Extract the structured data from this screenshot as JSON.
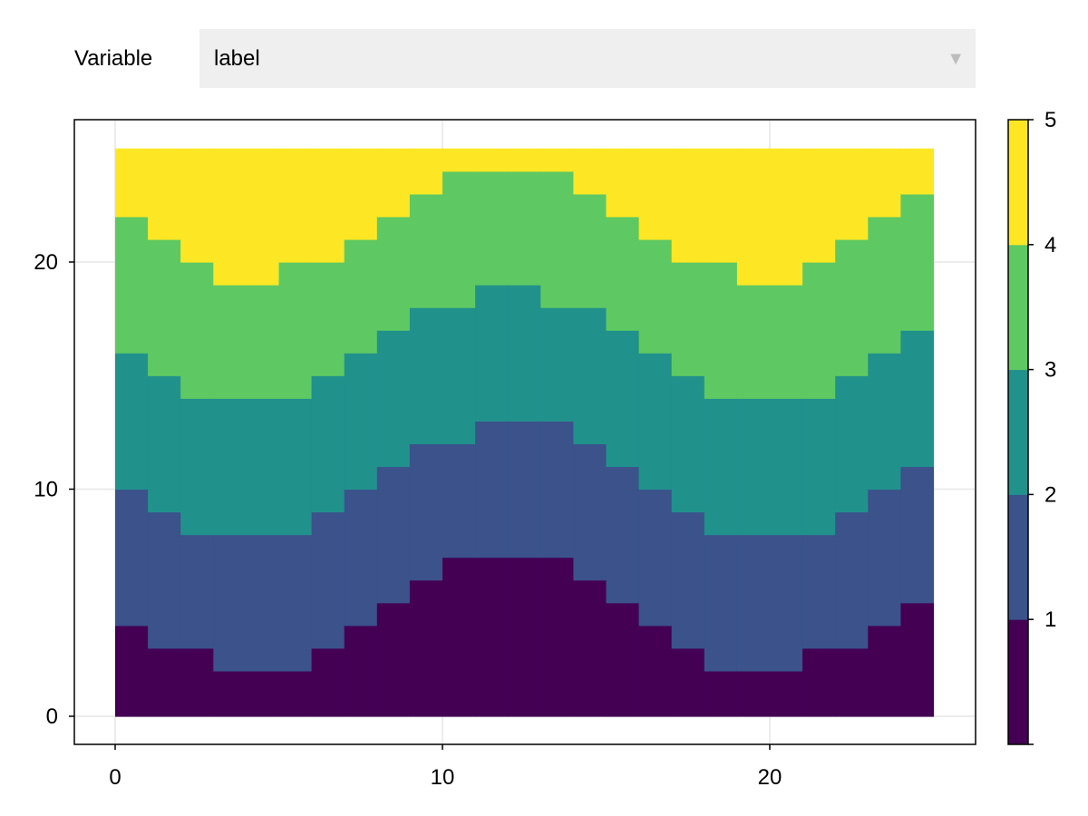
{
  "controls": {
    "variable_label": "Variable",
    "variable_selected": "label",
    "dropdown_arrow_icon": "triangle-down-icon"
  },
  "chart_data": {
    "type": "heatmap",
    "title": "",
    "xlabel": "",
    "ylabel": "",
    "xlim": [
      -1.25,
      26.25
    ],
    "ylim": [
      -1.25,
      26.25
    ],
    "x_ticks": [
      0,
      10,
      20
    ],
    "y_ticks": [
      0,
      10,
      20
    ],
    "grid": true,
    "x_edges": [
      0,
      25
    ],
    "y_edges": [
      0,
      25
    ],
    "bands_note": "each column lists upper boundary (y) of classes 1..4; class 5 band tops at 25",
    "class_colors": [
      "#440154",
      "#3b528b",
      "#21918c",
      "#5ec962",
      "#fde725"
    ],
    "columns": [
      {
        "x": [
          0,
          1
        ],
        "b1": 4,
        "b2": 10,
        "b3": 16,
        "b4": 22
      },
      {
        "x": [
          1,
          2
        ],
        "b1": 3,
        "b2": 9,
        "b3": 15,
        "b4": 21
      },
      {
        "x": [
          2,
          3
        ],
        "b1": 3,
        "b2": 8,
        "b3": 14,
        "b4": 20
      },
      {
        "x": [
          3,
          5
        ],
        "b1": 2,
        "b2": 8,
        "b3": 14,
        "b4": 19
      },
      {
        "x": [
          5,
          6
        ],
        "b1": 2,
        "b2": 8,
        "b3": 14,
        "b4": 20
      },
      {
        "x": [
          6,
          7
        ],
        "b1": 3,
        "b2": 9,
        "b3": 15,
        "b4": 20
      },
      {
        "x": [
          7,
          8
        ],
        "b1": 4,
        "b2": 10,
        "b3": 16,
        "b4": 21
      },
      {
        "x": [
          8,
          9
        ],
        "b1": 5,
        "b2": 11,
        "b3": 17,
        "b4": 22
      },
      {
        "x": [
          9,
          10
        ],
        "b1": 6,
        "b2": 12,
        "b3": 18,
        "b4": 23
      },
      {
        "x": [
          10,
          11
        ],
        "b1": 7,
        "b2": 12,
        "b3": 18,
        "b4": 24
      },
      {
        "x": [
          11,
          12
        ],
        "b1": 7,
        "b2": 13,
        "b3": 19,
        "b4": 24
      },
      {
        "x": [
          12,
          13
        ],
        "b1": 7,
        "b2": 13,
        "b3": 19,
        "b4": 24
      },
      {
        "x": [
          13,
          14
        ],
        "b1": 7,
        "b2": 13,
        "b3": 18,
        "b4": 24
      },
      {
        "x": [
          14,
          15
        ],
        "b1": 6,
        "b2": 12,
        "b3": 18,
        "b4": 23
      },
      {
        "x": [
          15,
          16
        ],
        "b1": 5,
        "b2": 11,
        "b3": 17,
        "b4": 22
      },
      {
        "x": [
          16,
          17
        ],
        "b1": 4,
        "b2": 10,
        "b3": 16,
        "b4": 21
      },
      {
        "x": [
          17,
          18
        ],
        "b1": 3,
        "b2": 9,
        "b3": 15,
        "b4": 20
      },
      {
        "x": [
          18,
          19
        ],
        "b1": 2,
        "b2": 8,
        "b3": 14,
        "b4": 20
      },
      {
        "x": [
          19,
          21
        ],
        "b1": 2,
        "b2": 8,
        "b3": 14,
        "b4": 19
      },
      {
        "x": [
          21,
          22
        ],
        "b1": 3,
        "b2": 8,
        "b3": 14,
        "b4": 20
      },
      {
        "x": [
          22,
          23
        ],
        "b1": 3,
        "b2": 9,
        "b3": 15,
        "b4": 21
      },
      {
        "x": [
          23,
          24
        ],
        "b1": 4,
        "b2": 10,
        "b3": 16,
        "b4": 22
      },
      {
        "x": [
          24,
          25
        ],
        "b1": 5,
        "b2": 11,
        "b3": 17,
        "b4": 23
      }
    ],
    "colorbar": {
      "ticks": [
        1,
        2,
        3,
        4,
        5
      ],
      "range": [
        0,
        5
      ]
    }
  }
}
